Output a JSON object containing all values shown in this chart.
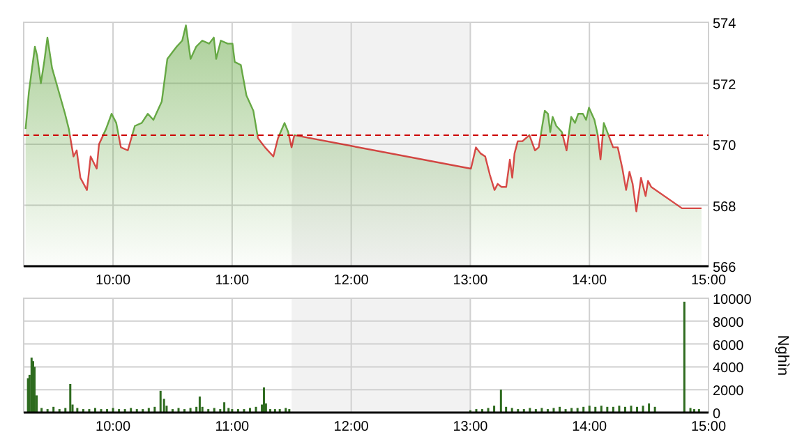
{
  "chart_data": [
    {
      "type": "area",
      "xlim": [
        9.25,
        15
      ],
      "xticks": [
        {
          "value": 10,
          "label": "10:00"
        },
        {
          "value": 11,
          "label": "11:00"
        },
        {
          "value": 12,
          "label": "12:00"
        },
        {
          "value": 13,
          "label": "13:00"
        },
        {
          "value": 14,
          "label": "14:00"
        },
        {
          "value": 15,
          "label": "15:00"
        }
      ],
      "ylim": [
        566,
        574
      ],
      "yticks": [
        566,
        568,
        570,
        572,
        574
      ],
      "grid": true,
      "bands": [
        {
          "axis": "x",
          "from": 11.5,
          "to": 13,
          "color": "#f2f2f2"
        }
      ],
      "ref_lines": [
        {
          "axis": "y",
          "value": 570.3,
          "color": "#cc0000",
          "line_style": "dashed"
        }
      ],
      "series": [
        {
          "color": "#66a844",
          "x": [
            9.266,
            9.293,
            9.344,
            9.363,
            9.394,
            9.422,
            9.449,
            9.488,
            9.539,
            9.597,
            9.629,
            9.668,
            9.695,
            9.726,
            9.781,
            9.812,
            9.863,
            9.882,
            9.941,
            9.988,
            10.027,
            10.066,
            10.124,
            10.183,
            10.241,
            10.292,
            10.339,
            10.409,
            10.456,
            10.534,
            10.581,
            10.612,
            10.651,
            10.698,
            10.749,
            10.807,
            10.846,
            10.866,
            10.905,
            10.963,
            11.003,
            11.022,
            11.073,
            11.12,
            11.178,
            11.217,
            11.276,
            11.346,
            11.385,
            11.44,
            11.471,
            11.499,
            11.522,
            13.005,
            13.047,
            13.086,
            13.125,
            13.164,
            13.203,
            13.23,
            13.262,
            13.301,
            13.332,
            13.352,
            13.371,
            13.398,
            13.437,
            13.496,
            13.543,
            13.574,
            13.625,
            13.652,
            13.671,
            13.691,
            13.722,
            13.769,
            13.808,
            13.847,
            13.879,
            13.906,
            13.945,
            13.972,
            13.996,
            14.042,
            14.07,
            14.093,
            14.121,
            14.16,
            14.199,
            14.238,
            14.277,
            14.308,
            14.336,
            14.363,
            14.394,
            14.433,
            14.472,
            14.492,
            14.519,
            14.777,
            14.941
          ],
          "values": [
            570.5,
            571.7,
            573.2,
            572.9,
            572.0,
            572.7,
            573.5,
            572.5,
            571.8,
            571.0,
            570.5,
            569.6,
            569.8,
            568.9,
            568.5,
            569.6,
            569.2,
            570.0,
            570.5,
            571.0,
            570.7,
            569.9,
            569.8,
            570.6,
            570.7,
            571.0,
            570.8,
            571.4,
            572.8,
            573.2,
            573.4,
            573.9,
            572.8,
            573.2,
            573.4,
            573.3,
            573.5,
            572.8,
            573.4,
            573.3,
            573.3,
            572.7,
            572.6,
            571.6,
            571.1,
            570.2,
            569.9,
            569.6,
            570.2,
            570.7,
            570.4,
            569.9,
            570.3,
            569.2,
            569.9,
            569.7,
            569.6,
            569.0,
            568.5,
            568.7,
            568.6,
            568.6,
            569.5,
            568.9,
            569.7,
            570.1,
            570.1,
            570.3,
            569.8,
            569.9,
            571.1,
            571.0,
            570.4,
            570.9,
            570.6,
            570.4,
            569.8,
            570.9,
            570.7,
            571.0,
            571.0,
            570.8,
            571.2,
            570.8,
            570.3,
            569.5,
            570.7,
            570.3,
            569.9,
            569.9,
            569.2,
            568.5,
            569.1,
            568.7,
            567.8,
            568.9,
            568.3,
            568.8,
            568.6,
            567.9,
            567.9
          ]
        }
      ]
    },
    {
      "type": "bar",
      "ylabel": "Nghìn",
      "xlim": [
        9.25,
        15
      ],
      "xticks": [
        {
          "value": 10,
          "label": "10:00"
        },
        {
          "value": 11,
          "label": "11:00"
        },
        {
          "value": 12,
          "label": "12:00"
        },
        {
          "value": 13,
          "label": "13:00"
        },
        {
          "value": 14,
          "label": "14:00"
        },
        {
          "value": 15,
          "label": "15:00"
        }
      ],
      "ylim": [
        0,
        10000
      ],
      "yticks": [
        0,
        2000,
        4000,
        6000,
        8000,
        10000
      ],
      "grid": true,
      "bands": [
        {
          "axis": "x",
          "from": 11.5,
          "to": 13,
          "color": "#f2f2f2"
        }
      ],
      "series": [
        {
          "color": "#2e6b1f",
          "x": [
            9.286,
            9.299,
            9.316,
            9.329,
            9.341,
            9.359,
            9.4,
            9.45,
            9.5,
            9.55,
            9.6,
            9.641,
            9.66,
            9.7,
            9.75,
            9.8,
            9.85,
            9.9,
            9.95,
            10.0,
            10.05,
            10.1,
            10.15,
            10.2,
            10.25,
            10.3,
            10.35,
            10.399,
            10.428,
            10.45,
            10.5,
            10.55,
            10.6,
            10.65,
            10.7,
            10.728,
            10.75,
            10.8,
            10.85,
            10.9,
            10.934,
            10.97,
            11.0,
            11.05,
            11.1,
            11.15,
            11.2,
            11.25,
            11.267,
            11.284,
            11.32,
            11.36,
            11.4,
            11.45,
            11.48,
            13.0,
            13.05,
            13.1,
            13.15,
            13.2,
            13.257,
            13.3,
            13.35,
            13.4,
            13.45,
            13.5,
            13.55,
            13.6,
            13.65,
            13.7,
            13.75,
            13.8,
            13.85,
            13.9,
            13.95,
            14.0,
            14.05,
            14.1,
            14.15,
            14.2,
            14.25,
            14.3,
            14.35,
            14.4,
            14.45,
            14.5,
            14.55,
            14.797,
            14.848,
            14.88,
            14.92
          ],
          "values": [
            3000,
            3300,
            4800,
            4500,
            4000,
            1500,
            400,
            300,
            500,
            300,
            400,
            2500,
            700,
            400,
            300,
            300,
            400,
            300,
            300,
            400,
            300,
            300,
            400,
            300,
            300,
            400,
            500,
            1900,
            1200,
            600,
            300,
            400,
            300,
            400,
            500,
            1400,
            500,
            300,
            400,
            300,
            900,
            400,
            300,
            300,
            300,
            400,
            500,
            700,
            2200,
            800,
            300,
            300,
            300,
            400,
            300,
            200,
            300,
            300,
            400,
            600,
            2000,
            500,
            400,
            300,
            300,
            400,
            300,
            400,
            300,
            400,
            500,
            300,
            400,
            400,
            500,
            600,
            500,
            600,
            500,
            500,
            600,
            500,
            600,
            500,
            600,
            800,
            500,
            9700,
            400,
            300,
            300
          ]
        }
      ]
    }
  ]
}
